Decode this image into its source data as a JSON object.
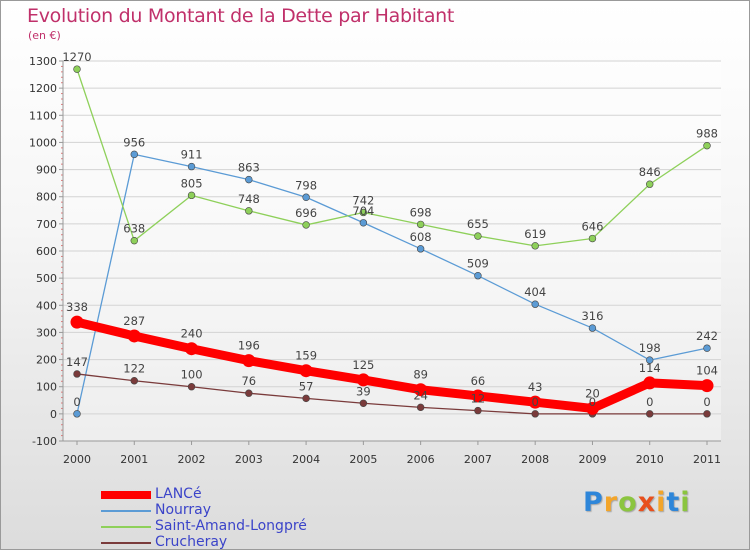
{
  "header": {
    "title": "Evolution du Montant de la Dette par Habitant",
    "subtitle": "(en €)"
  },
  "brand": {
    "letters": [
      "P",
      "r",
      "o",
      "x",
      "i",
      "t",
      "i"
    ],
    "colors": [
      "#2e86d9",
      "#f3a52a",
      "#8bc53f",
      "#e84f1c",
      "#f3a52a",
      "#2e86d9",
      "#8bc53f"
    ]
  },
  "chart_data": {
    "type": "line",
    "x": [
      "2000",
      "2001",
      "2002",
      "2003",
      "2004",
      "2005",
      "2006",
      "2007",
      "2008",
      "2009",
      "2010",
      "2011"
    ],
    "ylim": [
      -100,
      1300
    ],
    "yticks": [
      -100,
      0,
      100,
      200,
      300,
      400,
      500,
      600,
      700,
      800,
      900,
      1000,
      1100,
      1200,
      1300
    ],
    "grid": "horizontal",
    "legend_position": "bottom-left",
    "title": "Evolution du Montant de la Dette par Habitant",
    "ylabel": "(en €)",
    "series": [
      {
        "name": "LANCé",
        "color": "#ff0000",
        "values": [
          338,
          287,
          240,
          196,
          159,
          125,
          89,
          66,
          43,
          20,
          114,
          104
        ]
      },
      {
        "name": "Nourray",
        "color": "#5b9bd5",
        "values": [
          0,
          956,
          911,
          863,
          798,
          704,
          608,
          509,
          404,
          316,
          198,
          242
        ]
      },
      {
        "name": "Saint-Amand-Longpré",
        "color": "#8ed05a",
        "values": [
          1270,
          638,
          805,
          748,
          696,
          742,
          698,
          655,
          619,
          646,
          846,
          988
        ]
      },
      {
        "name": "Crucheray",
        "color": "#7a3b3b",
        "values": [
          147,
          122,
          100,
          76,
          57,
          39,
          24,
          12,
          0,
          0,
          0,
          0
        ]
      }
    ]
  }
}
